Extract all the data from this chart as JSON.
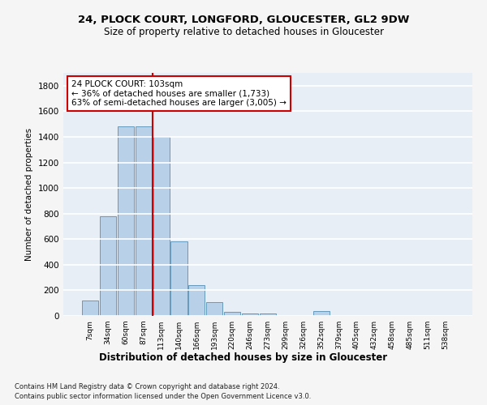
{
  "title_line1": "24, PLOCK COURT, LONGFORD, GLOUCESTER, GL2 9DW",
  "title_line2": "Size of property relative to detached houses in Gloucester",
  "xlabel": "Distribution of detached houses by size in Gloucester",
  "ylabel": "Number of detached properties",
  "bin_labels": [
    "7sqm",
    "34sqm",
    "60sqm",
    "87sqm",
    "113sqm",
    "140sqm",
    "166sqm",
    "193sqm",
    "220sqm",
    "246sqm",
    "273sqm",
    "299sqm",
    "326sqm",
    "352sqm",
    "379sqm",
    "405sqm",
    "432sqm",
    "458sqm",
    "485sqm",
    "511sqm",
    "538sqm"
  ],
  "bar_values": [
    120,
    780,
    1480,
    1480,
    1400,
    580,
    240,
    110,
    30,
    20,
    20,
    0,
    0,
    40,
    0,
    0,
    0,
    0,
    0,
    0,
    0
  ],
  "bar_color": "#b8d0e8",
  "bar_edge_color": "#6699bb",
  "annotation_text_line1": "24 PLOCK COURT: 103sqm",
  "annotation_text_line2": "← 36% of detached houses are smaller (1,733)",
  "annotation_text_line3": "63% of semi-detached houses are larger (3,005) →",
  "ylim": [
    0,
    1900
  ],
  "yticks": [
    0,
    200,
    400,
    600,
    800,
    1000,
    1200,
    1400,
    1600,
    1800
  ],
  "footer_line1": "Contains HM Land Registry data © Crown copyright and database right 2024.",
  "footer_line2": "Contains public sector information licensed under the Open Government Licence v3.0.",
  "bg_color": "#e8eef5",
  "grid_color": "#ffffff",
  "annotation_box_color": "#ffffff",
  "annotation_box_edge": "#cc0000",
  "line_color": "#cc0000",
  "fig_bg": "#f5f5f5"
}
